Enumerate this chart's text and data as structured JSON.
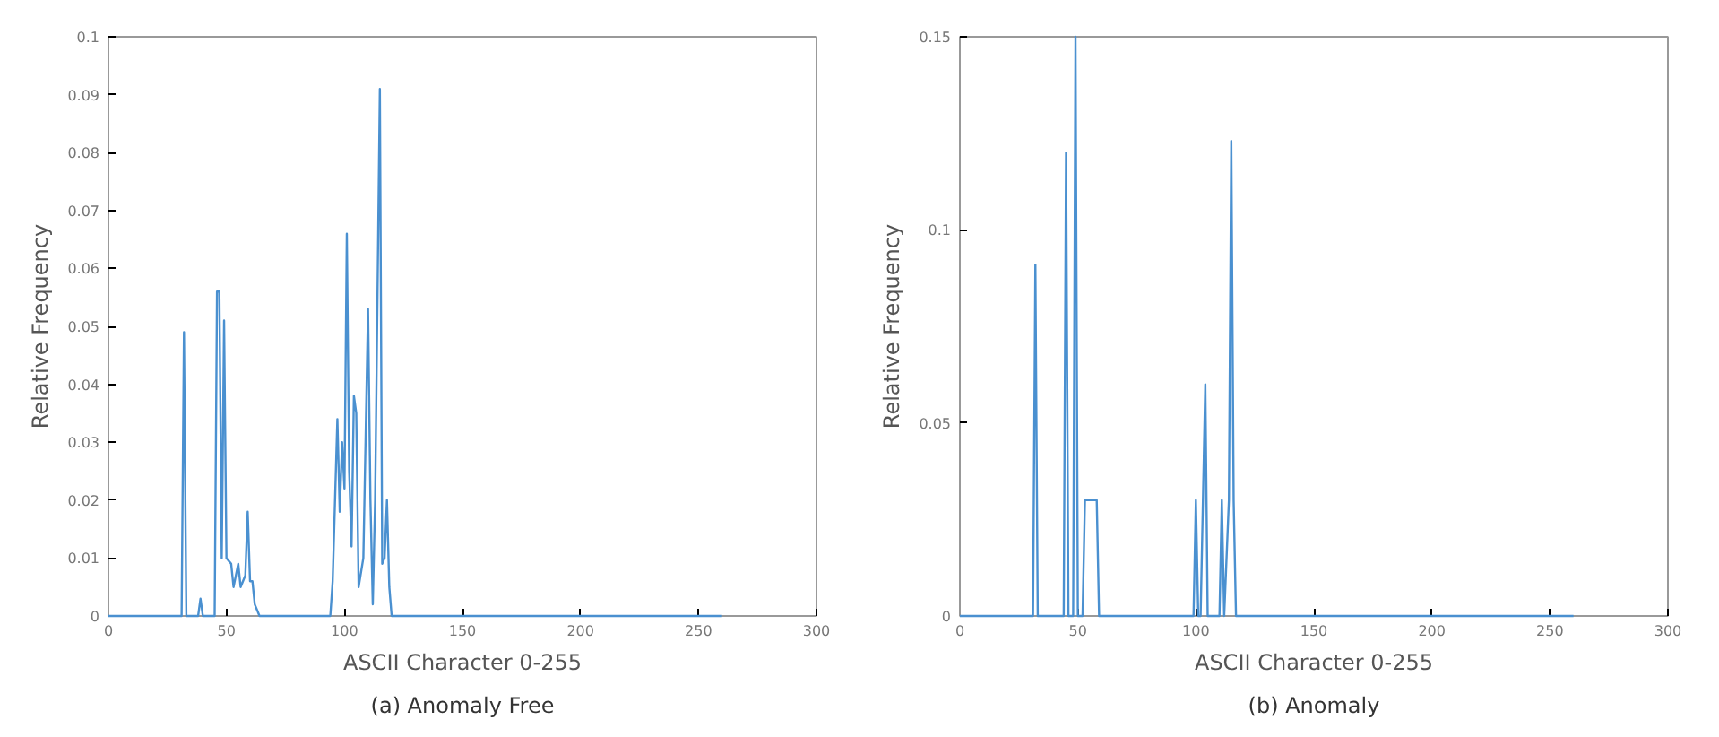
{
  "chart_data": [
    {
      "type": "line",
      "xlabel": "ASCII Character 0-255",
      "ylabel": "Relative Frequency",
      "annotations": [
        "(a) Anomaly Free"
      ],
      "xlim": [
        0,
        300
      ],
      "ylim": [
        0,
        0.1
      ],
      "xticks": [
        0,
        50,
        100,
        150,
        200,
        250,
        300
      ],
      "yticks": [
        0,
        0.01,
        0.02,
        0.03,
        0.04,
        0.05,
        0.06,
        0.07,
        0.08,
        0.09,
        0.1
      ],
      "grid": false,
      "series": [
        {
          "color": "#4a90d0",
          "x": [
            0,
            31,
            32,
            33,
            38,
            39,
            40,
            45,
            46,
            47,
            48,
            49,
            50,
            52,
            53,
            55,
            56,
            58,
            59,
            60,
            61,
            62,
            63,
            64,
            94,
            95,
            97,
            98,
            99,
            100,
            101,
            102,
            103,
            104,
            105,
            106,
            108,
            110,
            111,
            112,
            113,
            115,
            116,
            117,
            118,
            119,
            120,
            260
          ],
          "values": [
            0,
            0,
            0.049,
            0,
            0,
            0.003,
            0,
            0,
            0.056,
            0.056,
            0.01,
            0.051,
            0.01,
            0.009,
            0.005,
            0.009,
            0.005,
            0.007,
            0.018,
            0.006,
            0.006,
            0.002,
            0.001,
            0,
            0,
            0.006,
            0.034,
            0.018,
            0.03,
            0.022,
            0.066,
            0.025,
            0.012,
            0.038,
            0.035,
            0.005,
            0.01,
            0.053,
            0.02,
            0.002,
            0.02,
            0.091,
            0.009,
            0.01,
            0.02,
            0.005,
            0,
            0
          ]
        }
      ]
    },
    {
      "type": "line",
      "xlabel": "ASCII Character 0-255",
      "ylabel": "Relative Frequency",
      "annotations": [
        "(b) Anomaly"
      ],
      "xlim": [
        0,
        300
      ],
      "ylim": [
        0,
        0.15
      ],
      "xticks": [
        0,
        50,
        100,
        150,
        200,
        250,
        300
      ],
      "yticks": [
        0,
        0.05,
        0.1,
        0.15
      ],
      "grid": false,
      "series": [
        {
          "color": "#4a90d0",
          "x": [
            0,
            31,
            32,
            33,
            44,
            45,
            46,
            48,
            49,
            50,
            52,
            53,
            58,
            59,
            99,
            100,
            101,
            102,
            104,
            105,
            106,
            110,
            111,
            112,
            114,
            115,
            116,
            117,
            260
          ],
          "values": [
            0,
            0,
            0.091,
            0,
            0,
            0.12,
            0,
            0,
            0.15,
            0,
            0,
            0.03,
            0.03,
            0,
            0,
            0.03,
            0,
            0,
            0.06,
            0,
            0,
            0,
            0.03,
            0,
            0.03,
            0.123,
            0.03,
            0,
            0
          ]
        }
      ]
    }
  ]
}
